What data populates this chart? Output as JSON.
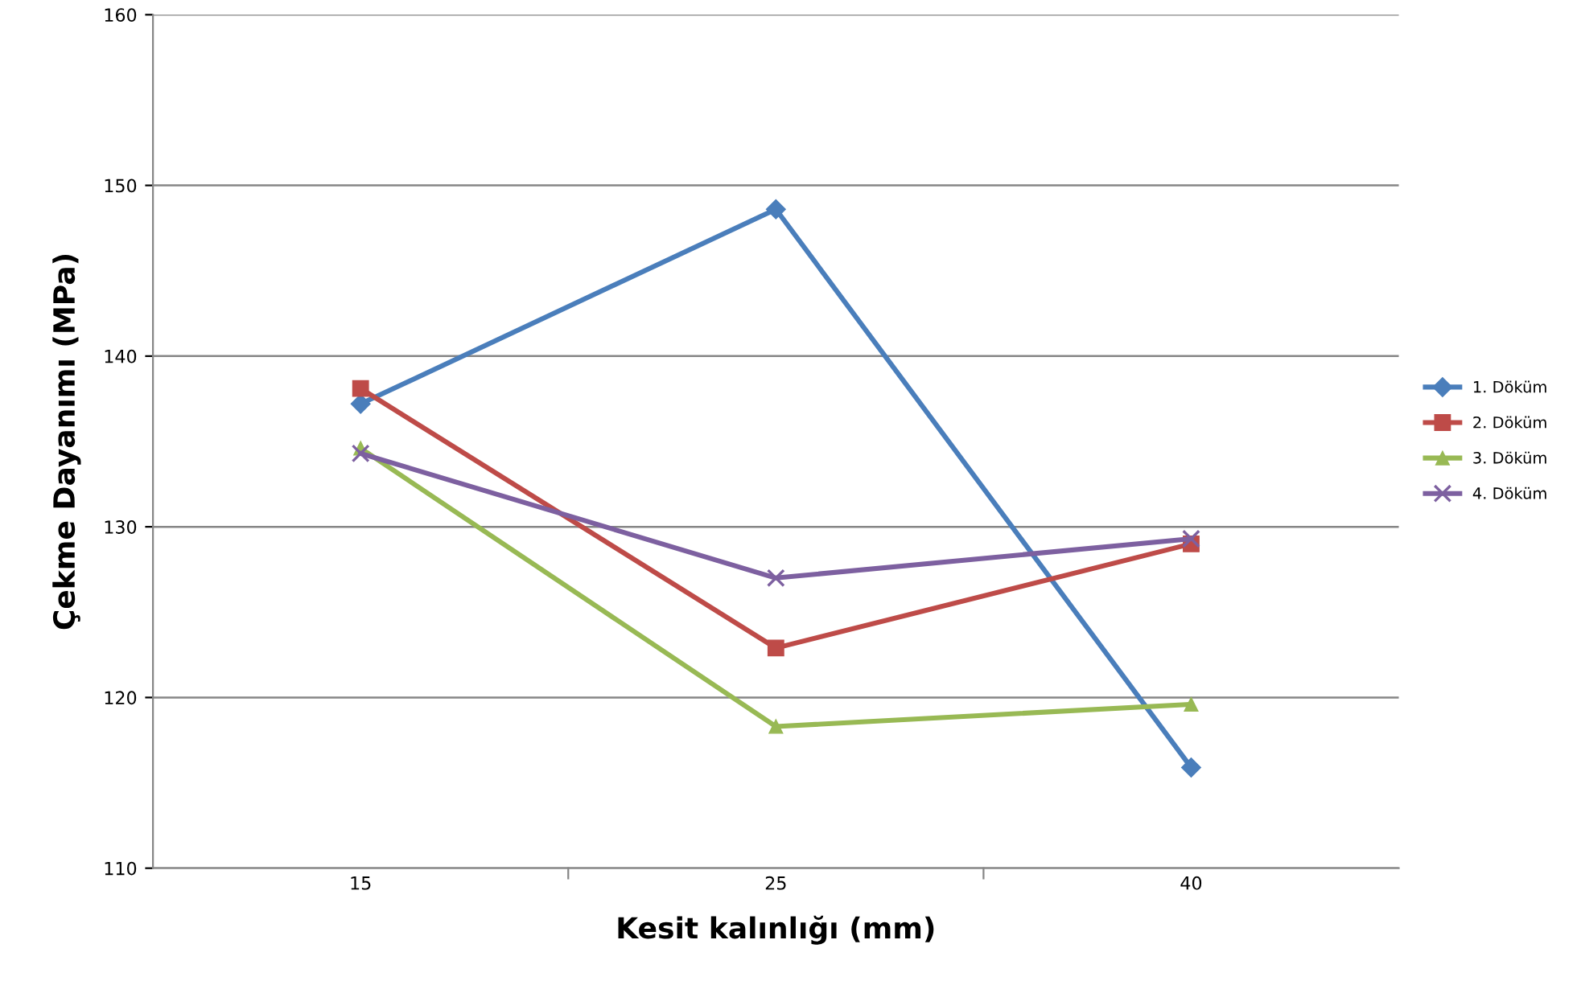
{
  "chart_data": {
    "type": "line",
    "xlabel": "Kesit kalınlığı (mm)",
    "ylabel": "Çekme Dayanımı (MPa)",
    "categories": [
      "15",
      "25",
      "40"
    ],
    "series": [
      {
        "name": "1. Döküm",
        "color": "#4a7ebb",
        "marker": "diamond",
        "values": [
          137.2,
          148.6,
          115.9
        ]
      },
      {
        "name": "2. Döküm",
        "color": "#be4b48",
        "marker": "square",
        "values": [
          138.1,
          122.9,
          129.0
        ]
      },
      {
        "name": "3. Döküm",
        "color": "#98b954",
        "marker": "triangle",
        "values": [
          134.6,
          118.3,
          119.6
        ]
      },
      {
        "name": "4. Döküm",
        "color": "#7d60a0",
        "marker": "cross",
        "values": [
          134.3,
          127.0,
          129.3
        ]
      }
    ],
    "ylim": [
      110,
      160
    ],
    "yticks": [
      110,
      120,
      130,
      140,
      150,
      160
    ],
    "grid": "y",
    "legend": "right"
  }
}
